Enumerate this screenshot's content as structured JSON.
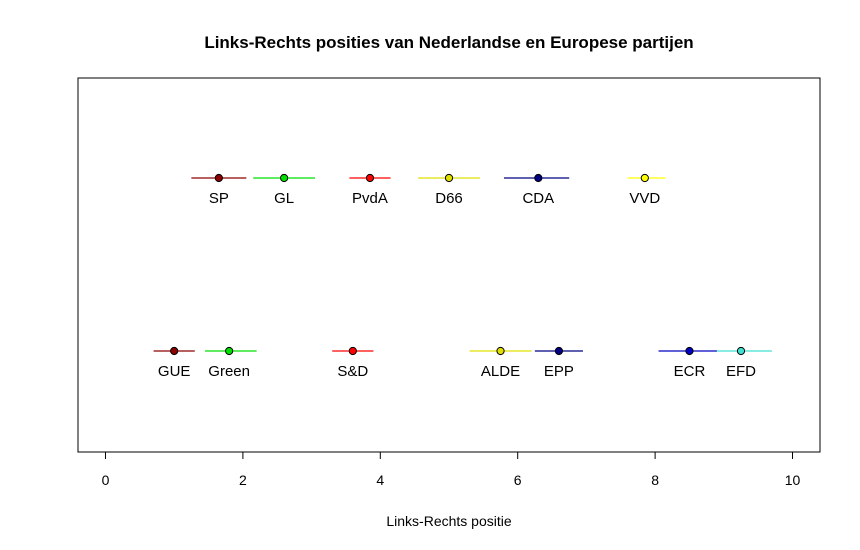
{
  "chart_data": {
    "type": "scatter",
    "title": "Links-Rechts posities van Nederlandse en Europese partijen",
    "xlabel": "Links-Rechts positie",
    "ylabel": "",
    "xlim": [
      -0.4,
      10.4
    ],
    "xticks": [
      0,
      2,
      4,
      6,
      8,
      10
    ],
    "xtick_labels": [
      "0",
      "2",
      "4",
      "6",
      "8",
      "10"
    ],
    "grid": false,
    "legend": "none",
    "series": [
      {
        "row": "dutch",
        "points": [
          {
            "label": "SP",
            "x": 1.65,
            "lo": 1.25,
            "hi": 2.05,
            "color": "#8B0000"
          },
          {
            "label": "GL",
            "x": 2.6,
            "lo": 2.15,
            "hi": 3.05,
            "color": "#00E000"
          },
          {
            "label": "PvdA",
            "x": 3.85,
            "lo": 3.55,
            "hi": 4.15,
            "color": "#FF0000"
          },
          {
            "label": "D66",
            "x": 5.0,
            "lo": 4.55,
            "hi": 5.45,
            "color": "#E0E000"
          },
          {
            "label": "CDA",
            "x": 6.3,
            "lo": 5.8,
            "hi": 6.75,
            "color": "#000080"
          },
          {
            "label": "VVD",
            "x": 7.85,
            "lo": 7.6,
            "hi": 8.15,
            "color": "#FFFF00"
          }
        ]
      },
      {
        "row": "european",
        "points": [
          {
            "label": "GUE",
            "x": 1.0,
            "lo": 0.7,
            "hi": 1.3,
            "color": "#8B0000"
          },
          {
            "label": "Green",
            "x": 1.8,
            "lo": 1.45,
            "hi": 2.2,
            "color": "#00E000"
          },
          {
            "label": "S&D",
            "x": 3.6,
            "lo": 3.3,
            "hi": 3.9,
            "color": "#FF0000"
          },
          {
            "label": "ALDE",
            "x": 5.75,
            "lo": 5.3,
            "hi": 6.2,
            "color": "#E0E000"
          },
          {
            "label": "EPP",
            "x": 6.6,
            "lo": 6.25,
            "hi": 6.95,
            "color": "#000080"
          },
          {
            "label": "ECR",
            "x": 8.5,
            "lo": 8.05,
            "hi": 8.9,
            "color": "#0000C0"
          },
          {
            "label": "EFD",
            "x": 9.25,
            "lo": 8.9,
            "hi": 9.7,
            "color": "#40E0D0"
          }
        ]
      }
    ]
  }
}
